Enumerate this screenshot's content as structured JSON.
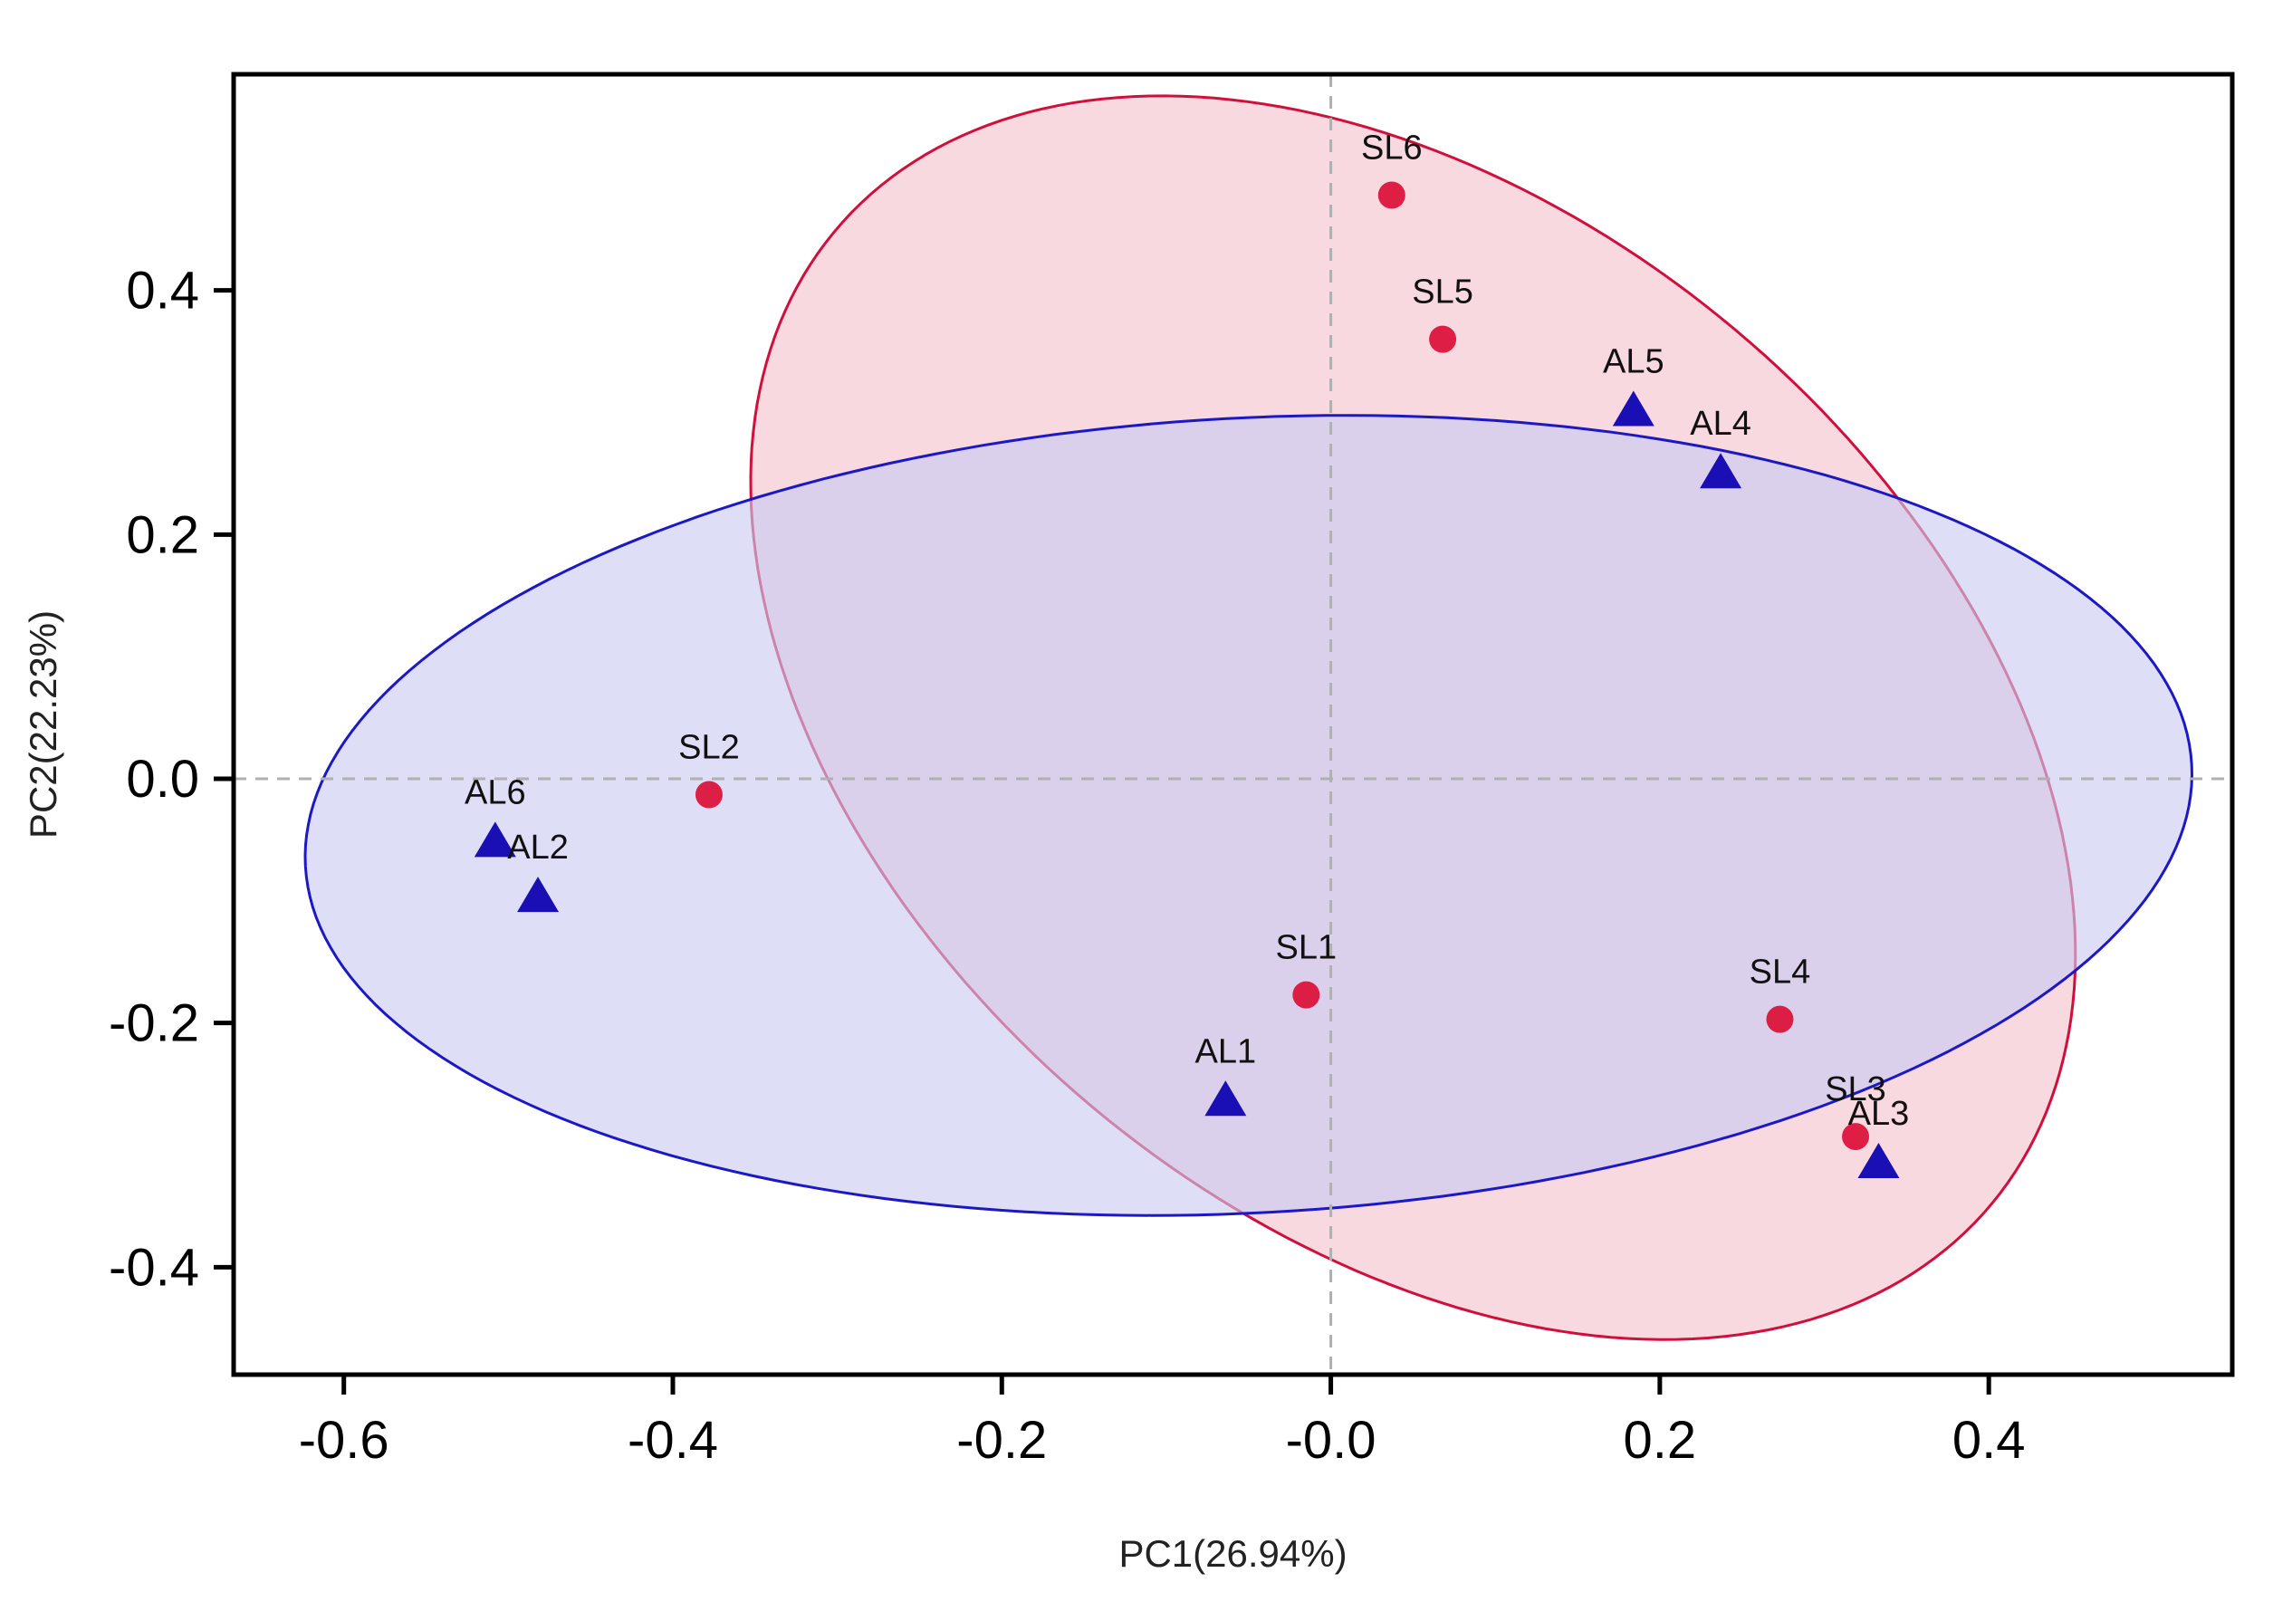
{
  "chart_data": {
    "type": "scatter",
    "xlabel": "PC1(26.94%)",
    "ylabel": "PC2(22.23%)",
    "xlim": [
      -0.667,
      0.548
    ],
    "ylim": [
      -0.488,
      0.577
    ],
    "x_ticks": [
      -0.6,
      -0.4,
      -0.2,
      0.0,
      0.2,
      0.4
    ],
    "x_tick_labels": [
      "-0.6",
      "-0.4",
      "-0.2",
      "-0.0",
      "0.2",
      "0.4"
    ],
    "y_ticks": [
      0.4,
      0.2,
      0.0,
      -0.2,
      -0.4
    ],
    "y_tick_labels": [
      "0.4",
      "0.2",
      "0.0",
      "-0.2",
      "-0.4"
    ],
    "reference_lines": {
      "x": 0.0,
      "y": 0.0
    },
    "series": [
      {
        "name": "SL",
        "marker": "circle",
        "color": "#dc143c",
        "ellipse_fill": "#f4c2cd",
        "ellipse_stroke": "#d0103c",
        "ellipse": {
          "cx": 0.05,
          "cy": 0.05,
          "a": 0.55,
          "b": 0.345,
          "angle_deg": -61
        },
        "points": [
          {
            "label": "SL1",
            "x": -0.015,
            "y": -0.177
          },
          {
            "label": "SL2",
            "x": -0.378,
            "y": -0.013
          },
          {
            "label": "SL3",
            "x": 0.319,
            "y": -0.293
          },
          {
            "label": "SL4",
            "x": 0.273,
            "y": -0.197
          },
          {
            "label": "SL5",
            "x": 0.068,
            "y": 0.36
          },
          {
            "label": "SL6",
            "x": 0.037,
            "y": 0.478
          }
        ]
      },
      {
        "name": "AL",
        "marker": "triangle",
        "color": "#1a0fb4",
        "ellipse_fill": "#cacaf2",
        "ellipse_stroke": "#1c18c4",
        "ellipse": {
          "cx": -0.05,
          "cy": -0.03,
          "a": 0.575,
          "b": 0.325,
          "angle_deg": 5
        },
        "points": [
          {
            "label": "AL1",
            "x": -0.064,
            "y": -0.262
          },
          {
            "label": "AL2",
            "x": -0.482,
            "y": -0.095
          },
          {
            "label": "AL3",
            "x": 0.333,
            "y": -0.313
          },
          {
            "label": "AL4",
            "x": 0.237,
            "y": 0.252
          },
          {
            "label": "AL5",
            "x": 0.184,
            "y": 0.303
          },
          {
            "label": "AL6",
            "x": -0.508,
            "y": -0.05
          }
        ]
      }
    ]
  }
}
